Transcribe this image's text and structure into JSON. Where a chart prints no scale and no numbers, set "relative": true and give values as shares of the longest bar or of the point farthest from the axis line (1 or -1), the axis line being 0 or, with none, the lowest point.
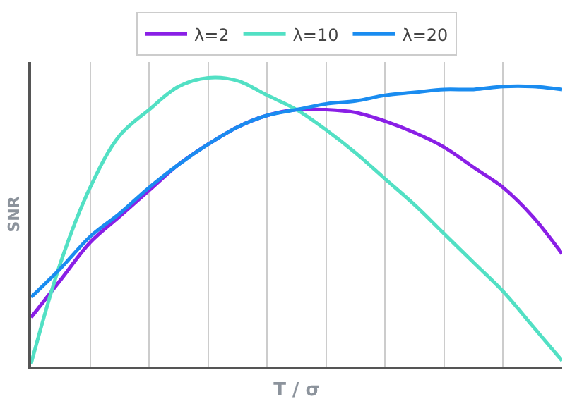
{
  "chart_data": {
    "type": "line",
    "relative": true,
    "xlabel": "T / σ",
    "ylabel": "SNR",
    "grid": "x",
    "legend": "top",
    "marker": "none",
    "line_style": "solid",
    "categories": [
      null,
      null,
      null,
      null,
      null,
      null,
      null,
      null,
      null,
      null,
      null,
      null,
      null,
      null,
      null,
      null,
      null,
      null,
      null
    ],
    "series": [
      {
        "name": "λ=2",
        "color": "#8a1fe6",
        "values": [
          0.17,
          0.3,
          0.43,
          0.52,
          0.61,
          0.7,
          0.77,
          0.83,
          0.87,
          0.89,
          0.89,
          0.88,
          0.85,
          0.81,
          0.76,
          0.69,
          0.62,
          0.52,
          0.39
        ]
      },
      {
        "name": "λ=10",
        "color": "#52e0c4",
        "values": [
          0.01,
          0.36,
          0.62,
          0.8,
          0.89,
          0.97,
          1.0,
          0.99,
          0.94,
          0.89,
          0.82,
          0.74,
          0.65,
          0.56,
          0.46,
          0.36,
          0.26,
          0.14,
          0.02
        ]
      },
      {
        "name": "λ=20",
        "color": "#1a8cf0",
        "values": [
          0.24,
          0.34,
          0.45,
          0.53,
          0.62,
          0.7,
          0.77,
          0.83,
          0.87,
          0.89,
          0.91,
          0.92,
          0.94,
          0.95,
          0.96,
          0.96,
          0.97,
          0.97,
          0.96
        ]
      }
    ]
  }
}
